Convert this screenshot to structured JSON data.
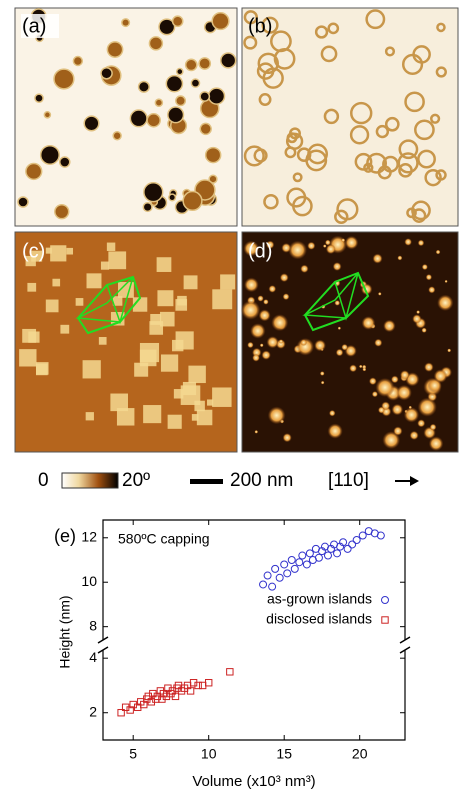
{
  "panels": [
    {
      "label": "(a)"
    },
    {
      "label": "(b)"
    },
    {
      "label": "(c)"
    },
    {
      "label": "(d)"
    }
  ],
  "scale_bar": {
    "min_label": "0",
    "max_label": "20º",
    "length_label": "200 nm",
    "direction_label": "[110]"
  },
  "chart_data": {
    "type": "scatter",
    "panel_label": "(e)",
    "annotation": "580ºC capping",
    "x_label": "Volume (x10³ nm³)",
    "y_label": "Height (nm)",
    "xlim": [
      3,
      23
    ],
    "xticks": [
      5,
      10,
      15,
      20
    ],
    "ylim": [
      1,
      4.3
    ],
    "yticks": [
      2,
      4
    ],
    "y2lim": [
      7.4,
      12.8
    ],
    "y2ticks": [
      8,
      10,
      12
    ],
    "legend": "upper right",
    "series": [
      {
        "name": "as-grown islands",
        "color": "#3333cc",
        "marker": "circle",
        "axis": "y2",
        "x": [
          13.6,
          13.9,
          14.2,
          14.4,
          14.7,
          15.0,
          15.2,
          15.5,
          15.7,
          16.0,
          16.2,
          16.5,
          16.7,
          16.9,
          17.1,
          17.3,
          17.5,
          17.7,
          17.9,
          18.1,
          18.3,
          18.5,
          18.7,
          18.9,
          19.2,
          19.5,
          19.8,
          20.2,
          20.6,
          21.0,
          21.4
        ],
        "values": [
          9.9,
          10.3,
          9.8,
          10.6,
          10.2,
          10.8,
          10.4,
          11.0,
          10.6,
          10.9,
          11.2,
          10.8,
          11.3,
          11.0,
          11.5,
          11.1,
          11.4,
          11.6,
          11.2,
          11.5,
          11.7,
          11.3,
          11.6,
          11.8,
          11.5,
          11.7,
          11.9,
          12.1,
          12.3,
          12.2,
          12.1
        ]
      },
      {
        "name": "disclosed islands",
        "color": "#cc2222",
        "marker": "square",
        "x": [
          4.2,
          4.5,
          4.8,
          5.0,
          5.3,
          5.5,
          5.7,
          5.9,
          6.0,
          6.2,
          6.3,
          6.5,
          6.6,
          6.8,
          6.9,
          7.0,
          7.2,
          7.3,
          7.5,
          7.6,
          7.8,
          7.9,
          8.0,
          8.2,
          8.4,
          8.6,
          8.8,
          9.0,
          9.3,
          9.6,
          10.0,
          11.4
        ],
        "values": [
          2.0,
          2.2,
          2.1,
          2.3,
          2.2,
          2.4,
          2.3,
          2.5,
          2.6,
          2.4,
          2.7,
          2.5,
          2.6,
          2.8,
          2.5,
          2.7,
          2.6,
          2.9,
          2.7,
          2.8,
          2.6,
          2.9,
          3.0,
          2.8,
          2.9,
          3.0,
          2.8,
          3.1,
          3.0,
          3.0,
          3.1,
          3.5
        ]
      }
    ]
  }
}
